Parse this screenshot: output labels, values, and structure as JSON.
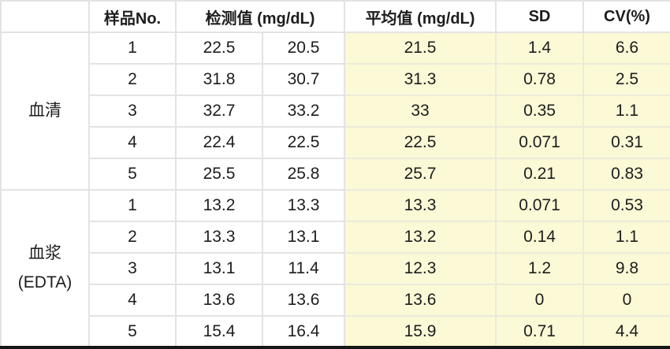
{
  "table": {
    "headers": {
      "group": "",
      "sample_no": "样品No.",
      "measured": "检测值 (mg/dL)",
      "mean": "平均值 (mg/dL)",
      "sd": "SD",
      "cv": "CV(%)"
    },
    "groups": [
      {
        "label_lines": [
          "血清"
        ],
        "rows": [
          {
            "no": "1",
            "v1": "22.5",
            "v2": "20.5",
            "mean": "21.5",
            "sd": "1.4",
            "cv": "6.6"
          },
          {
            "no": "2",
            "v1": "31.8",
            "v2": "30.7",
            "mean": "31.3",
            "sd": "0.78",
            "cv": "2.5"
          },
          {
            "no": "3",
            "v1": "32.7",
            "v2": "33.2",
            "mean": "33",
            "sd": "0.35",
            "cv": "1.1"
          },
          {
            "no": "4",
            "v1": "22.4",
            "v2": "22.5",
            "mean": "22.5",
            "sd": "0.071",
            "cv": "0.31"
          },
          {
            "no": "5",
            "v1": "25.5",
            "v2": "25.8",
            "mean": "25.7",
            "sd": "0.21",
            "cv": "0.83"
          }
        ]
      },
      {
        "label_lines": [
          "血浆",
          "(EDTA)"
        ],
        "rows": [
          {
            "no": "1",
            "v1": "13.2",
            "v2": "13.3",
            "mean": "13.3",
            "sd": "0.071",
            "cv": "0.53"
          },
          {
            "no": "2",
            "v1": "13.3",
            "v2": "13.1",
            "mean": "13.2",
            "sd": "0.14",
            "cv": "1.1"
          },
          {
            "no": "3",
            "v1": "13.1",
            "v2": "11.4",
            "mean": "12.3",
            "sd": "1.2",
            "cv": "9.8"
          },
          {
            "no": "4",
            "v1": "13.6",
            "v2": "13.6",
            "mean": "13.6",
            "sd": "0",
            "cv": "0"
          },
          {
            "no": "5",
            "v1": "15.4",
            "v2": "16.4",
            "mean": "15.9",
            "sd": "0.71",
            "cv": "4.4"
          }
        ]
      }
    ]
  },
  "colors": {
    "highlight": "#fbf9d6",
    "grid": "#e3e3e3",
    "bottom_rule": "#161616",
    "text": "#1d1d1d"
  },
  "chart_data": {
    "type": "table",
    "title": "",
    "columns": [
      "样品No.",
      "检测值 (mg/dL)",
      "检测值 (mg/dL)",
      "平均值 (mg/dL)",
      "SD",
      "CV(%)"
    ],
    "row_groups": {
      "血清": [
        [
          "1",
          22.5,
          20.5,
          21.5,
          1.4,
          6.6
        ],
        [
          "2",
          31.8,
          30.7,
          31.3,
          0.78,
          2.5
        ],
        [
          "3",
          32.7,
          33.2,
          33,
          0.35,
          1.1
        ],
        [
          "4",
          22.4,
          22.5,
          22.5,
          0.071,
          0.31
        ],
        [
          "5",
          25.5,
          25.8,
          25.7,
          0.21,
          0.83
        ]
      ],
      "血浆(EDTA)": [
        [
          "1",
          13.2,
          13.3,
          13.3,
          0.071,
          0.53
        ],
        [
          "2",
          13.3,
          13.1,
          13.2,
          0.14,
          1.1
        ],
        [
          "3",
          13.1,
          11.4,
          12.3,
          1.2,
          9.8
        ],
        [
          "4",
          13.6,
          13.6,
          13.6,
          0,
          0
        ],
        [
          "5",
          15.4,
          16.4,
          15.9,
          0.71,
          4.4
        ]
      ]
    }
  }
}
